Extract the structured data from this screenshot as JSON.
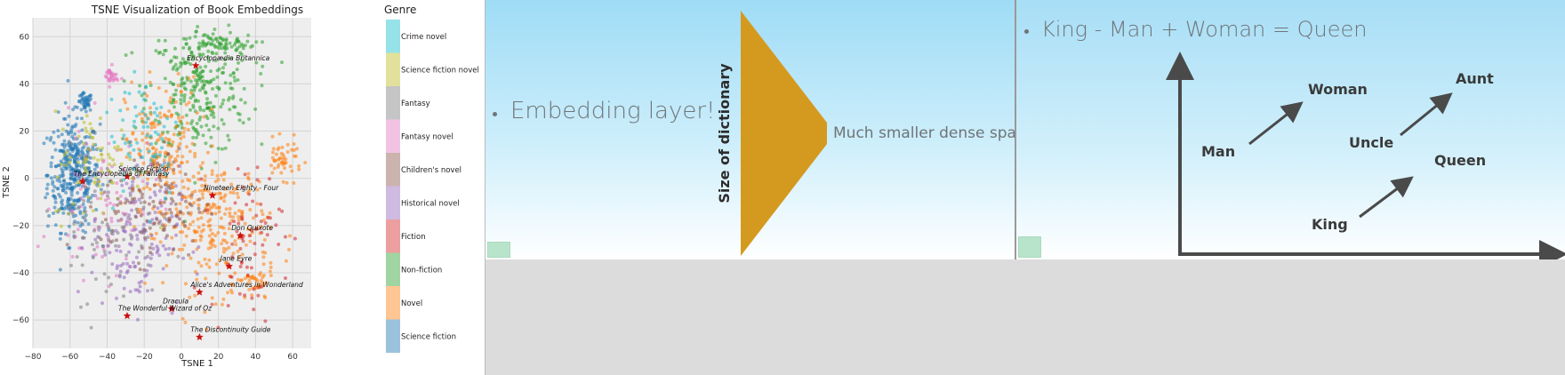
{
  "chart_data": {
    "type": "scatter",
    "title": "TSNE Visualization of Book Embeddings",
    "xlabel": "TSNE 1",
    "ylabel": "TSNE 2",
    "xlim": [
      -80,
      70
    ],
    "ylim": [
      -72,
      68
    ],
    "xticks": [
      -80,
      -60,
      -40,
      -20,
      0,
      20,
      40,
      60
    ],
    "yticks": [
      -60,
      -40,
      -20,
      0,
      20,
      40,
      60
    ],
    "grid": true,
    "legend_title": "Genre",
    "legend_position": "right",
    "legend": [
      {
        "name": "Crime novel",
        "color": "#17becf"
      },
      {
        "name": "Science fiction novel",
        "color": "#bcbd22"
      },
      {
        "name": "Fantasy",
        "color": "#7f7f7f"
      },
      {
        "name": "Fantasy novel",
        "color": "#e377c2"
      },
      {
        "name": "Children's novel",
        "color": "#8c564b"
      },
      {
        "name": "Historical novel",
        "color": "#9467bd"
      },
      {
        "name": "Fiction",
        "color": "#d62728"
      },
      {
        "name": "Non-fiction",
        "color": "#2ca02c"
      },
      {
        "name": "Novel",
        "color": "#ff7f0e"
      },
      {
        "name": "Science fiction",
        "color": "#1f77b4"
      }
    ],
    "clusters": [
      {
        "genre": 9,
        "cx": -58,
        "cy": 2,
        "sx": 7,
        "sy": 12,
        "n": 380
      },
      {
        "genre": 9,
        "cx": -52,
        "cy": 32,
        "sx": 2,
        "sy": 2,
        "n": 40
      },
      {
        "genre": 7,
        "cx": 10,
        "cy": 38,
        "sx": 14,
        "sy": 14,
        "n": 300
      },
      {
        "genre": 7,
        "cx": 20,
        "cy": 57,
        "sx": 10,
        "sy": 2,
        "n": 60
      },
      {
        "genre": 8,
        "cx": -10,
        "cy": 10,
        "sx": 10,
        "sy": 16,
        "n": 200
      },
      {
        "genre": 8,
        "cx": 20,
        "cy": -20,
        "sx": 14,
        "sy": 14,
        "n": 240
      },
      {
        "genre": 8,
        "cx": 55,
        "cy": 8,
        "sx": 5,
        "sy": 4,
        "n": 50
      },
      {
        "genre": 8,
        "cx": 40,
        "cy": -45,
        "sx": 5,
        "sy": 4,
        "n": 40
      },
      {
        "genre": 3,
        "cx": -38,
        "cy": 43,
        "sx": 2,
        "sy": 2,
        "n": 30
      },
      {
        "genre": 3,
        "cx": -40,
        "cy": -10,
        "sx": 14,
        "sy": 16,
        "n": 80
      },
      {
        "genre": 5,
        "cx": -25,
        "cy": -25,
        "sx": 12,
        "sy": 15,
        "n": 150
      },
      {
        "genre": 4,
        "cx": -15,
        "cy": -10,
        "sx": 14,
        "sy": 12,
        "n": 120
      },
      {
        "genre": 0,
        "cx": -20,
        "cy": 20,
        "sx": 10,
        "sy": 15,
        "n": 70
      },
      {
        "genre": 1,
        "cx": -45,
        "cy": 5,
        "sx": 12,
        "sy": 12,
        "n": 80
      },
      {
        "genre": 2,
        "cx": -40,
        "cy": -20,
        "sx": 14,
        "sy": 16,
        "n": 80
      },
      {
        "genre": 6,
        "cx": 35,
        "cy": -25,
        "sx": 10,
        "sy": 16,
        "n": 70
      }
    ],
    "annotations": [
      {
        "text": "Encyclopædia Britannica",
        "x": 3,
        "y": 50
      },
      {
        "text": "The Encyclopedia of Fantasy",
        "x": -58,
        "y": 1
      },
      {
        "text": "Science Fiction",
        "x": -34,
        "y": 3
      },
      {
        "text": "Nineteen Eighty - Four",
        "x": 12,
        "y": -5
      },
      {
        "text": "Don Quixote",
        "x": 27,
        "y": -22
      },
      {
        "text": "Jane Eyre",
        "x": 21,
        "y": -35
      },
      {
        "text": "Alice's Adventures in Wonderland",
        "x": 5,
        "y": -46
      },
      {
        "text": "Dracula",
        "x": -10,
        "y": -53
      },
      {
        "text": "The Wonderful Wizard of Oz",
        "x": -34,
        "y": -56
      },
      {
        "text": "The Discontinuity Guide",
        "x": 5,
        "y": -65
      }
    ]
  },
  "slide1": {
    "bullet": "Embedding layer!",
    "vertical_label": "Size of dictionary",
    "right_label": "Much smaller dense space",
    "shape_color": "#d49a1f"
  },
  "slide2": {
    "equation": "King - Man + Woman = Queen",
    "words": {
      "man": "Man",
      "woman": "Woman",
      "uncle": "Uncle",
      "aunt": "Aunt",
      "king": "King",
      "queen": "Queen"
    }
  }
}
